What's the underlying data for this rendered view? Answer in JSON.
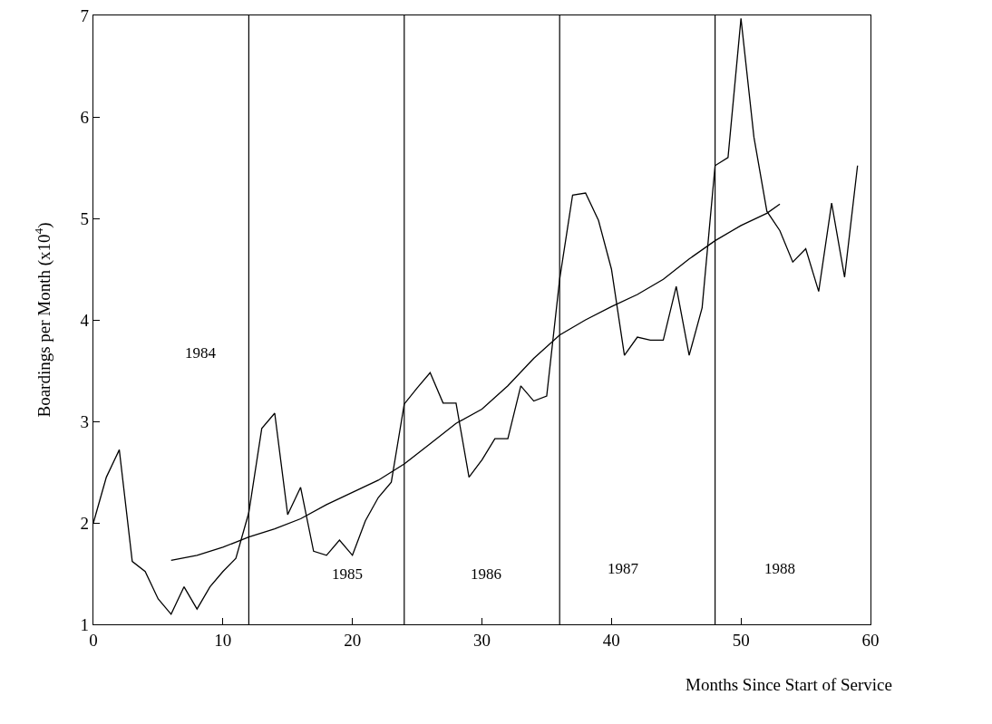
{
  "chart_data": {
    "type": "line",
    "xlabel": "Months Since Start of Service",
    "ylabel": "Boardings per Month (x10$^{4}$)",
    "series": [
      {
        "color": "#000000",
        "x": [
          0,
          1,
          2,
          3,
          4,
          5,
          6,
          7,
          8,
          9,
          10,
          11,
          12,
          13,
          14,
          15,
          16,
          17,
          18,
          19,
          20,
          21,
          22,
          23,
          24,
          25,
          26,
          27,
          28,
          29,
          30,
          31,
          32,
          33,
          34,
          35,
          36,
          37,
          38,
          39,
          40,
          41,
          42,
          43,
          44,
          45,
          46,
          47,
          48,
          49,
          50,
          51,
          52,
          53,
          54,
          55,
          56,
          57,
          58,
          59
        ],
        "values": [
          2.0,
          2.45,
          2.72,
          1.62,
          1.52,
          1.25,
          1.1,
          1.37,
          1.15,
          1.37,
          1.52,
          1.65,
          2.1,
          2.93,
          3.08,
          2.08,
          2.35,
          1.72,
          1.68,
          1.83,
          1.68,
          2.02,
          2.25,
          2.4,
          3.17,
          3.33,
          3.48,
          3.18,
          3.18,
          2.45,
          2.62,
          2.83,
          2.83,
          3.35,
          3.2,
          3.25,
          4.4,
          5.23,
          5.25,
          4.98,
          4.5,
          3.65,
          3.83,
          3.8,
          3.8,
          4.33,
          3.65,
          4.12,
          5.52,
          5.6,
          6.97,
          5.8,
          5.07,
          4.88,
          4.57,
          4.7,
          4.28,
          5.15,
          4.42,
          5.52
        ]
      },
      {
        "color": "#000000",
        "x": [
          6,
          8,
          10,
          12,
          14,
          16,
          18,
          20,
          22,
          24,
          26,
          28,
          30,
          32,
          34,
          36,
          38,
          40,
          42,
          44,
          46,
          48,
          50,
          52,
          53
        ],
        "values": [
          1.63,
          1.68,
          1.76,
          1.86,
          1.94,
          2.04,
          2.18,
          2.3,
          2.42,
          2.58,
          2.78,
          2.98,
          3.12,
          3.35,
          3.62,
          3.85,
          4.0,
          4.13,
          4.25,
          4.4,
          4.6,
          4.78,
          4.93,
          5.05,
          5.14
        ]
      }
    ],
    "xlim": [
      0,
      60
    ],
    "xticks": [
      0,
      10,
      20,
      30,
      40,
      50,
      60
    ],
    "ylim": [
      1,
      7
    ],
    "yticks": [
      1,
      2,
      3,
      4,
      5,
      6,
      7
    ],
    "ref_lines": [
      {
        "axis": "x",
        "value": 12,
        "color": "#000000"
      },
      {
        "axis": "x",
        "value": 24,
        "color": "#000000"
      },
      {
        "axis": "x",
        "value": 36,
        "color": "#000000"
      },
      {
        "axis": "x",
        "value": 48,
        "color": "#000000"
      }
    ],
    "annotations": [
      "1984",
      "1985",
      "1986",
      "1987",
      "1988"
    ],
    "grid": false,
    "marker": "none",
    "line_style": "solid"
  }
}
